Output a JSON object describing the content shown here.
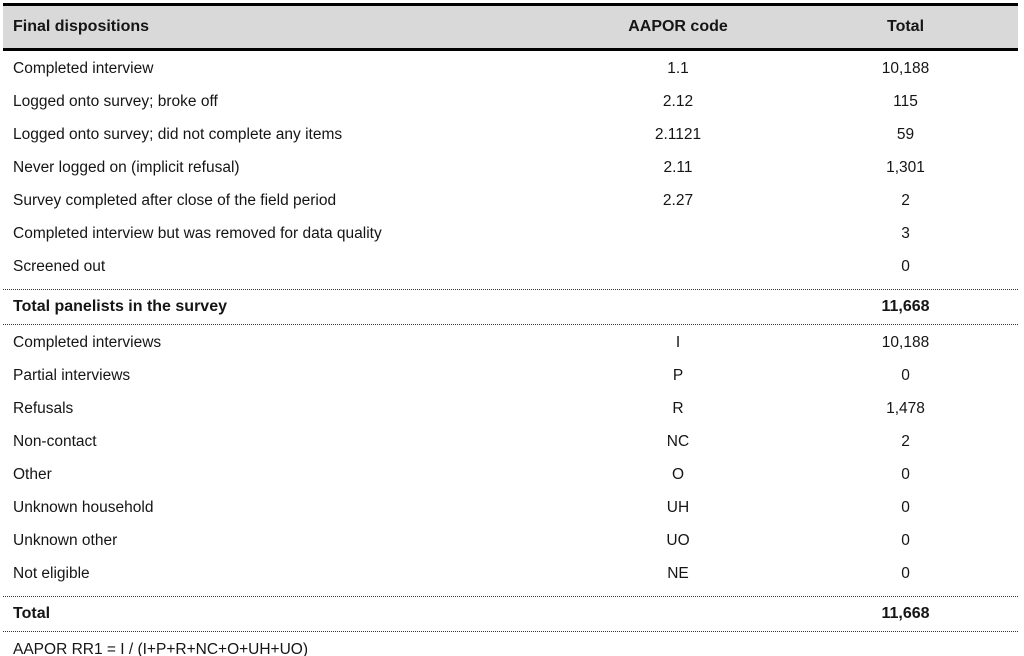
{
  "table": {
    "headers": {
      "dispositions": "Final dispositions",
      "code": "AAPOR code",
      "total": "Total"
    },
    "final_dispositions": [
      {
        "label": "Completed interview",
        "code": "1.1",
        "total": "10,188"
      },
      {
        "label": "Logged onto survey; broke off",
        "code": "2.12",
        "total": "115"
      },
      {
        "label": "Logged onto survey; did not complete any items",
        "code": "2.1121",
        "total": "59"
      },
      {
        "label": "Never logged on (implicit refusal)",
        "code": "2.11",
        "total": "1,301"
      },
      {
        "label": "Survey completed after close of the field period",
        "code": "2.27",
        "total": "2"
      },
      {
        "label": "Completed interview but was removed for data quality",
        "code": "",
        "total": "3"
      },
      {
        "label": "Screened out",
        "code": "",
        "total": "0"
      }
    ],
    "total_panelists_row": {
      "label": "Total panelists in the survey",
      "code": "",
      "total": "11,668"
    },
    "aapor_categories": [
      {
        "label": "Completed interviews",
        "code": "I",
        "total": "10,188"
      },
      {
        "label": "Partial interviews",
        "code": "P",
        "total": "0"
      },
      {
        "label": "Refusals",
        "code": "R",
        "total": "1,478"
      },
      {
        "label": "Non-contact",
        "code": "NC",
        "total": "2"
      },
      {
        "label": "Other",
        "code": "O",
        "total": "0"
      },
      {
        "label": "Unknown household",
        "code": "UH",
        "total": "0"
      },
      {
        "label": "Unknown other",
        "code": "UO",
        "total": "0"
      },
      {
        "label": "Not eligible",
        "code": "NE",
        "total": "0"
      }
    ],
    "grand_total_row": {
      "label": "Total",
      "code": "",
      "total": "11,668"
    },
    "formula": "AAPOR RR1 = I / (I+P+R+NC+O+UH+UO)"
  },
  "colors": {
    "header_bg": "#d9d9d9",
    "text": "#151515",
    "rule": "#000000"
  }
}
